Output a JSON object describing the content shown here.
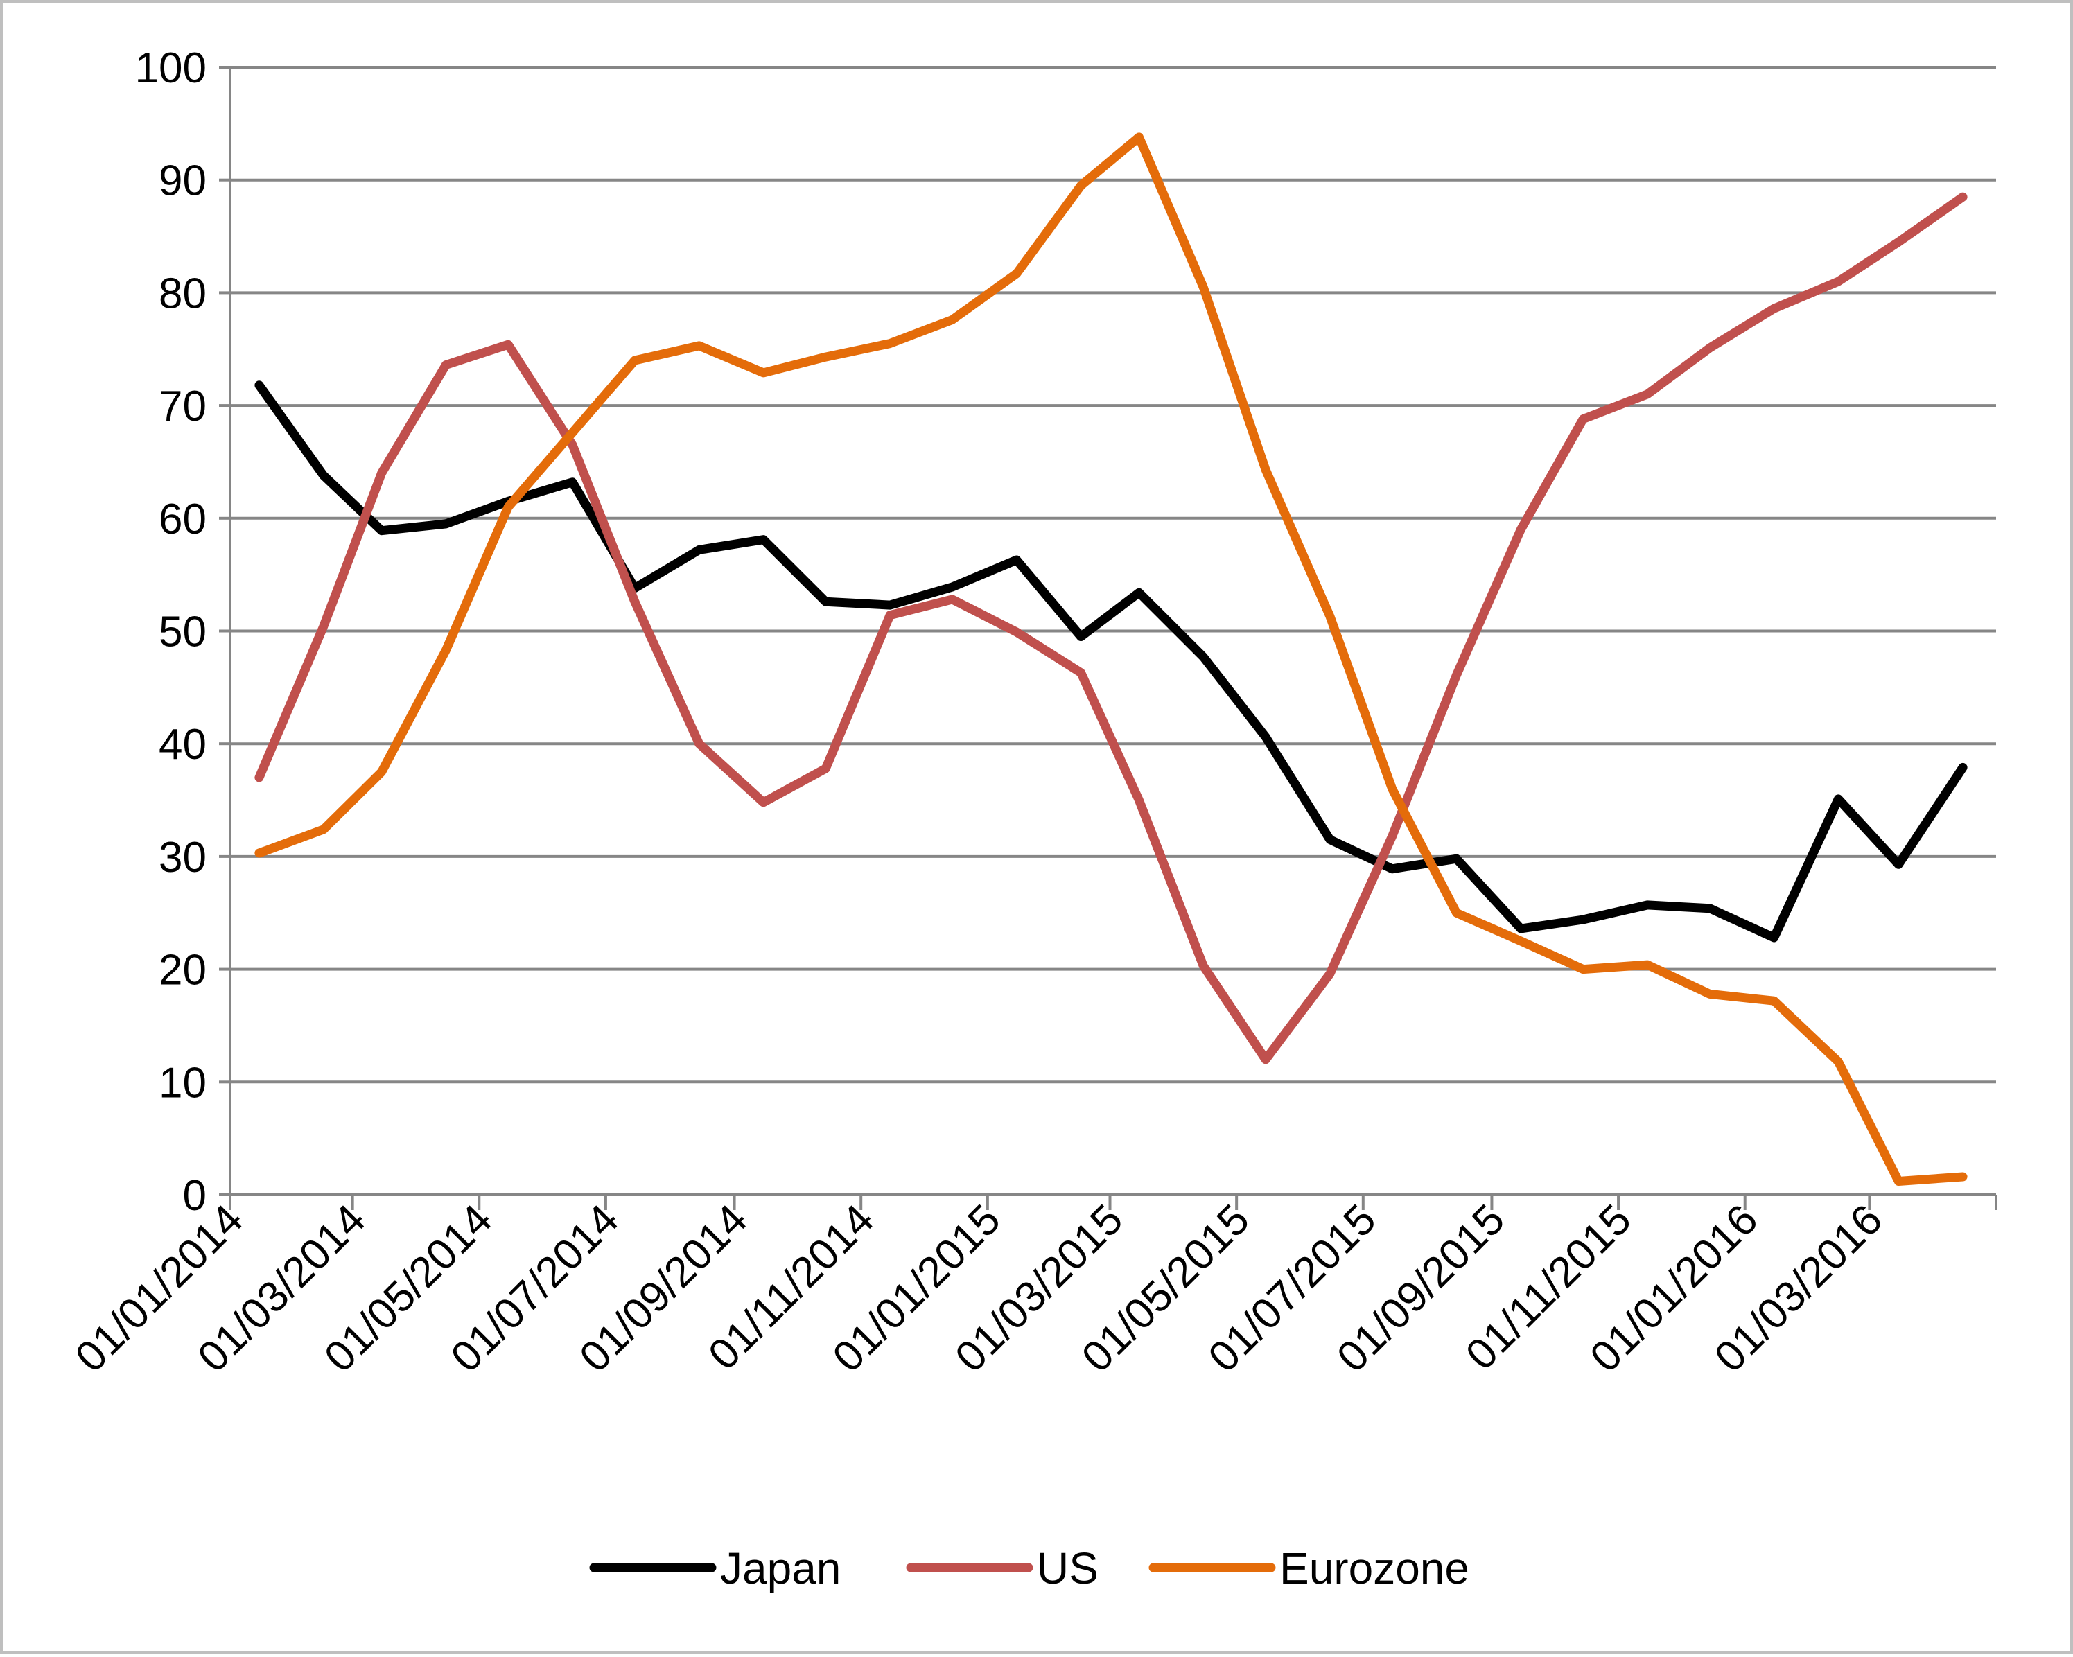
{
  "chart_data": {
    "type": "line",
    "title": "",
    "xlabel": "",
    "ylabel": "",
    "ylim": [
      0,
      100
    ],
    "y_ticks": [
      0,
      10,
      20,
      30,
      40,
      50,
      60,
      70,
      80,
      90,
      100
    ],
    "grid": "horizontal",
    "legend_position": "bottom",
    "x_tick_labels": [
      "01/01/2014",
      "01/03/2014",
      "01/05/2014",
      "01/07/2014",
      "01/09/2014",
      "01/11/2014",
      "01/01/2015",
      "01/03/2015",
      "01/05/2015",
      "01/07/2015",
      "01/09/2015",
      "01/11/2015",
      "01/01/2016",
      "01/03/2016"
    ],
    "x": [
      "15/01/2014",
      "15/02/2014",
      "15/03/2014",
      "15/04/2014",
      "15/05/2014",
      "15/06/2014",
      "15/07/2014",
      "15/08/2014",
      "15/09/2014",
      "15/10/2014",
      "15/11/2014",
      "15/12/2014",
      "15/01/2015",
      "15/02/2015",
      "15/03/2015",
      "15/04/2015",
      "15/05/2015",
      "15/06/2015",
      "15/07/2015",
      "15/08/2015",
      "15/09/2015",
      "15/10/2015",
      "15/11/2015",
      "15/12/2015",
      "15/01/2016",
      "15/02/2016",
      "15/03/2016",
      "15/04/2016"
    ],
    "series": [
      {
        "name": "Japan",
        "color": "#000000",
        "values": [
          71.8,
          63.8,
          58.9,
          59.5,
          61.5,
          63.2,
          53.8,
          57.2,
          58.1,
          52.6,
          52.3,
          53.9,
          56.3,
          49.5,
          53.4,
          47.7,
          40.6,
          31.5,
          28.9,
          29.8,
          23.6,
          24.4,
          25.7,
          25.4,
          22.8,
          35.1,
          29.3,
          37.9
        ]
      },
      {
        "name": "US",
        "color": "#c0504d",
        "values": [
          37.0,
          50.4,
          64.0,
          73.6,
          75.4,
          66.5,
          52.6,
          40.0,
          34.8,
          37.8,
          51.4,
          52.8,
          49.9,
          46.3,
          35.0,
          20.3,
          12.0,
          19.6,
          31.8,
          46.1,
          59.0,
          68.8,
          71.0,
          75.1,
          78.6,
          81.0,
          84.5,
          88.5
        ]
      },
      {
        "name": "Eurozone",
        "color": "#e46c0a",
        "values": [
          30.3,
          32.4,
          37.5,
          48.3,
          61.0,
          67.6,
          74.0,
          75.3,
          72.9,
          74.3,
          75.5,
          77.6,
          81.7,
          89.5,
          93.8,
          80.5,
          64.3,
          51.3,
          36.0,
          25.0,
          22.5,
          20.0,
          20.4,
          17.8,
          17.2,
          11.8,
          1.2,
          1.6
        ]
      }
    ]
  }
}
